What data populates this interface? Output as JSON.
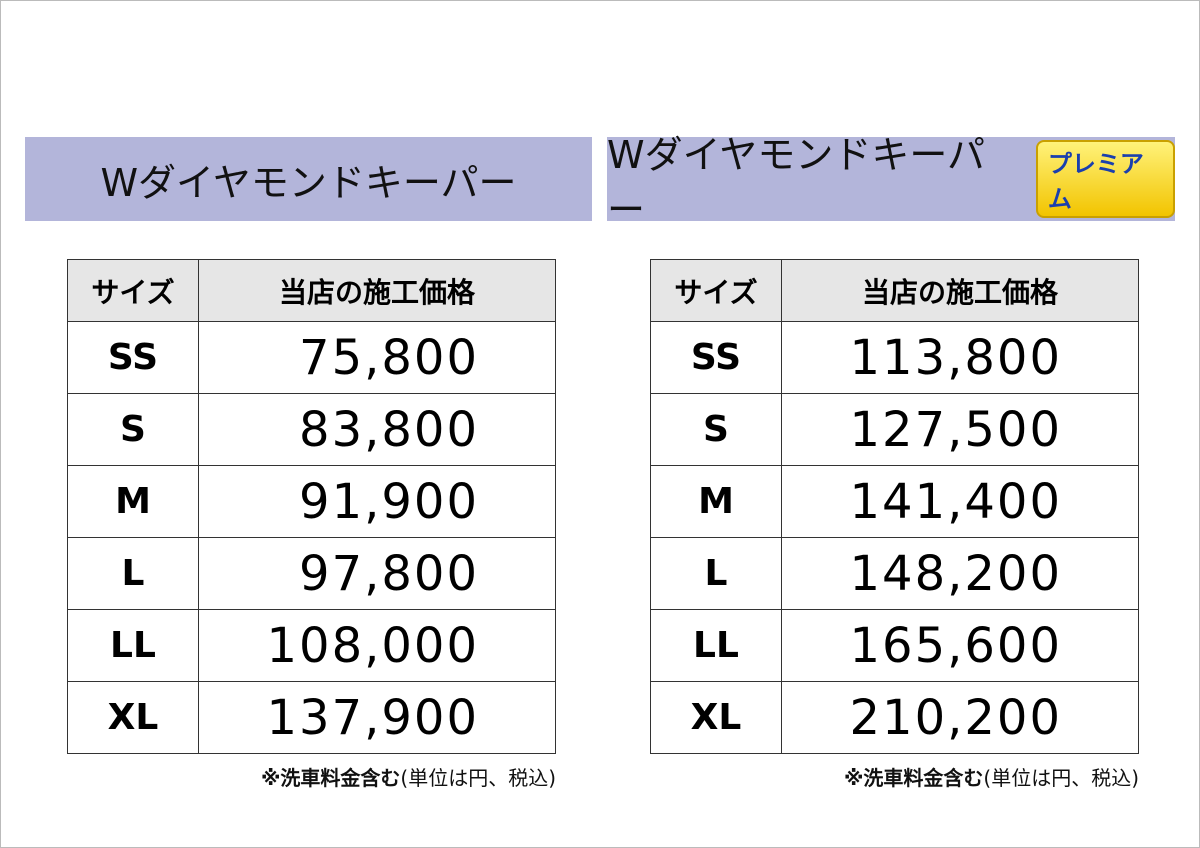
{
  "panels": [
    {
      "title": "Wダイヤモンドキーパー",
      "table": {
        "header": [
          "サイズ",
          "当店の施工価格"
        ],
        "rows": [
          [
            "SS",
            "75,800"
          ],
          [
            "S",
            "83,800"
          ],
          [
            "M",
            "91,900"
          ],
          [
            "L",
            "97,800"
          ],
          [
            "LL",
            "108,000"
          ],
          [
            "XL",
            "137,900"
          ]
        ]
      },
      "note": [
        "※洗車料金含む",
        "(単位は円、税込)"
      ]
    },
    {
      "title": "Wダイヤモンドキーパー",
      "badge": "プレミアム",
      "table": {
        "header": [
          "サイズ",
          "当店の施工価格"
        ],
        "rows": [
          [
            "SS",
            "113,800"
          ],
          [
            "S",
            "127,500"
          ],
          [
            "M",
            "141,400"
          ],
          [
            "L",
            "148,200"
          ],
          [
            "LL",
            "165,600"
          ],
          [
            "XL",
            "210,200"
          ]
        ]
      },
      "note": [
        "※洗車料金含む",
        "(単位は円、税込)"
      ]
    }
  ]
}
